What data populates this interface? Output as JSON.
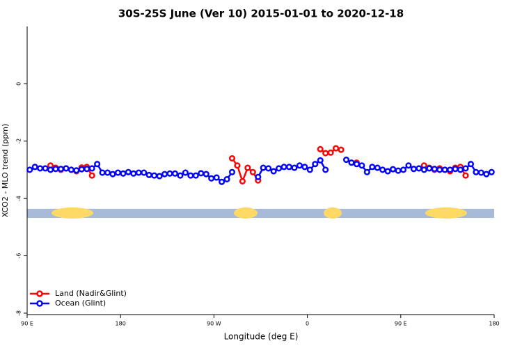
{
  "chart_data": {
    "type": "line",
    "title": "30S-25S June (Ver 10)   2015-01-01 to 2020-12-18",
    "xlabel": "Longitude (deg E)",
    "ylabel": "XCO2 - MLO trend (ppm)",
    "x": [
      92.5,
      97.5,
      102.5,
      107.5,
      112.5,
      117.5,
      122.5,
      127.5,
      132.5,
      137.5,
      142.5,
      147.5,
      152.5,
      157.5,
      162.5,
      167.5,
      172.5,
      177.5,
      182.5,
      187.5,
      192.5,
      197.5,
      202.5,
      207.5,
      212.5,
      217.5,
      222.5,
      227.5,
      232.5,
      237.5,
      242.5,
      247.5,
      252.5,
      257.5,
      262.5,
      267.5,
      272.5,
      277.5,
      282.5,
      287.5,
      292.5,
      297.5,
      302.5,
      307.5,
      312.5,
      317.5,
      322.5,
      327.5,
      332.5,
      337.5,
      342.5,
      347.5,
      352.5,
      357.5,
      362.5,
      367.5,
      372.5,
      377.5,
      382.5,
      387.5,
      392.5,
      397.5,
      402.5,
      407.5,
      412.5,
      417.5,
      422.5,
      427.5,
      432.5,
      437.5,
      442.5,
      447.5,
      452.5,
      457.5,
      462.5,
      467.5,
      472.5,
      477.5,
      482.5,
      487.5,
      492.5,
      497.5,
      502.5,
      507.5,
      512.5,
      517.5,
      522.5,
      527.5,
      532.5,
      537.5
    ],
    "series": [
      {
        "name": "Land (Nadir&Glint)",
        "color": "#ff0000",
        "values": [
          null,
          null,
          null,
          null,
          -2.85,
          -2.93,
          -3.0,
          -2.95,
          -3.0,
          -3.05,
          -2.92,
          -2.9,
          -3.2,
          null,
          null,
          null,
          null,
          null,
          null,
          null,
          null,
          null,
          null,
          null,
          null,
          null,
          null,
          null,
          null,
          null,
          null,
          null,
          null,
          null,
          null,
          null,
          null,
          null,
          null,
          -2.6,
          -2.85,
          -3.4,
          -2.93,
          -3.08,
          -3.37,
          null,
          null,
          null,
          null,
          null,
          null,
          null,
          null,
          null,
          null,
          null,
          -2.28,
          -2.42,
          -2.4,
          -2.25,
          -2.3,
          null,
          null,
          -2.75,
          null,
          null,
          null,
          null,
          null,
          null,
          null,
          null,
          null,
          null,
          null,
          null,
          -2.85,
          -2.93,
          -3.0,
          -2.95,
          -3.0,
          -3.05,
          -2.93,
          -2.9,
          -3.2,
          null,
          null,
          null,
          null,
          null
        ]
      },
      {
        "name": "Ocean (Glint)",
        "color": "#0000ff",
        "values": [
          -3.0,
          -2.9,
          -2.95,
          -2.95,
          -3.0,
          -2.97,
          -2.97,
          -2.95,
          -3.0,
          -3.02,
          -2.98,
          -2.97,
          -2.95,
          -2.8,
          -3.1,
          -3.1,
          -3.15,
          -3.1,
          -3.13,
          -3.08,
          -3.13,
          -3.1,
          -3.1,
          -3.18,
          -3.2,
          -3.22,
          -3.15,
          -3.13,
          -3.13,
          -3.2,
          -3.1,
          -3.2,
          -3.2,
          -3.12,
          -3.15,
          -3.3,
          -3.27,
          -3.42,
          -3.33,
          -3.08,
          null,
          null,
          null,
          null,
          -3.25,
          -2.93,
          -2.95,
          -3.05,
          -2.95,
          -2.9,
          -2.9,
          -2.93,
          -2.85,
          -2.9,
          -3.0,
          -2.8,
          -2.67,
          -3.0,
          null,
          null,
          null,
          -2.65,
          -2.75,
          -2.8,
          -2.85,
          -3.08,
          -2.9,
          -2.93,
          -3.0,
          -3.05,
          -2.98,
          -3.03,
          -3.0,
          -2.85,
          -2.97,
          -2.95,
          -3.0,
          -2.95,
          -2.97,
          -3.0,
          -3.0,
          -3.0,
          -2.97,
          -3.0,
          -2.95,
          -2.8,
          -3.08,
          -3.1,
          -3.15,
          -3.08
        ]
      }
    ],
    "xlim": [
      90,
      540
    ],
    "xticks": [
      {
        "value": 90,
        "label": "90 E"
      },
      180,
      {
        "value": 270,
        "label": "90 W"
      },
      {
        "value": 360,
        "label": "0"
      },
      {
        "value": 450,
        "label": "90 E"
      },
      180
    ],
    "ylim": [
      -8.05,
      2
    ],
    "yticks": [
      -8,
      -6,
      -4,
      -2,
      0
    ],
    "legend": "bottom-left"
  }
}
